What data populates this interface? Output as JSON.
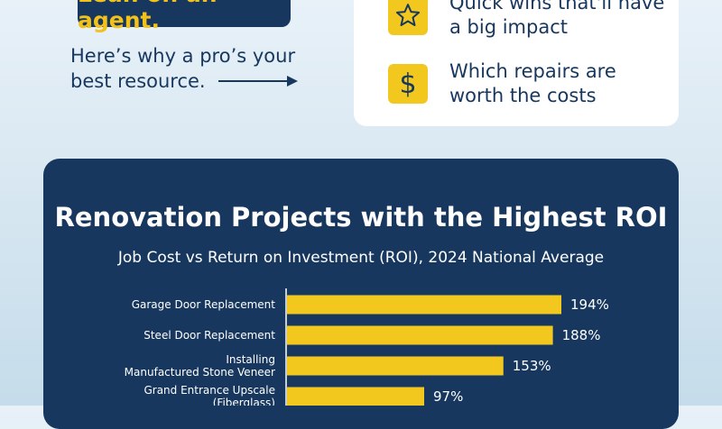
{
  "callout": {
    "text": "Lean on an agent."
  },
  "intro": {
    "text": "Here’s why a pro’s your best resource."
  },
  "benefits": [
    {
      "icon": "star-icon",
      "text": "Quick wins that'll have a big impact"
    },
    {
      "icon": "dollar-icon",
      "text": "Which repairs are worth the costs"
    }
  ],
  "colors": {
    "navy": "#17375e",
    "accent": "#f2c81f",
    "bar": "#f2c81f",
    "background": "#dbe9f3"
  },
  "chart_data": {
    "type": "bar",
    "orientation": "horizontal",
    "title": "Renovation Projects with the Highest ROI",
    "subtitle": "Job Cost vs Return on Investment (ROI), 2024 National Average",
    "categories": [
      "Garage Door Replacement",
      "Steel Door Replacement",
      "Installing Manufactured Stone Veneer",
      "Grand Entrance Upscale (Fiberglass)"
    ],
    "values": [
      194,
      188,
      153,
      97
    ],
    "value_labels": [
      "194%",
      "188%",
      "153%",
      "97%"
    ],
    "unit": "%",
    "xlim": [
      0,
      200
    ],
    "grid": false,
    "legend": "none"
  }
}
